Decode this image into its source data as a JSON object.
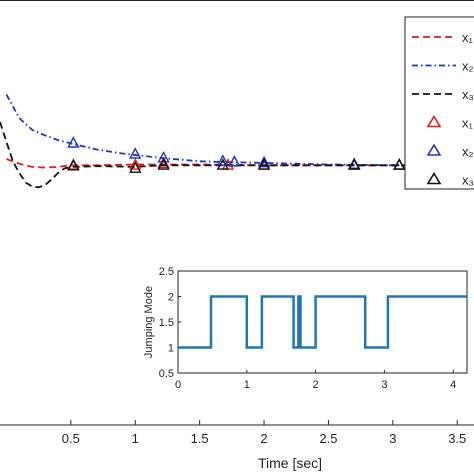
{
  "chart_data": [
    {
      "type": "line",
      "xlabel": "Time [sec]",
      "ylabel": "",
      "xlim": [
        -0.05,
        3.63
      ],
      "ylim": [
        -3.3,
        2.1
      ],
      "xticks": [
        0.5,
        1,
        1.5,
        2,
        2.5,
        3,
        3.5
      ],
      "xtick_labels": [
        "0.5",
        "1",
        "1.5",
        "2",
        "2.5",
        "3",
        "3.5"
      ],
      "series": [
        {
          "name": "x₁",
          "color": "#e41a1c",
          "style": "dashed",
          "x": [
            0,
            0.1,
            0.2,
            0.3,
            0.4,
            0.5,
            0.7,
            1.0,
            1.2,
            1.5,
            2.0,
            3.0,
            3.6
          ],
          "y": [
            0.08,
            0.02,
            -0.02,
            -0.03,
            -0.02,
            0.0,
            0.0,
            0.01,
            0.01,
            0.01,
            0.0,
            0.0,
            0.0
          ],
          "markers_x": [
            0.52,
            1.0,
            1.22,
            1.72,
            2.0,
            2.7,
            3.05
          ],
          "markers_y": [
            0.0,
            0.0,
            0.02,
            0.0,
            0.0,
            0.0,
            0.0
          ]
        },
        {
          "name": "x₂",
          "color": "#1f35c8",
          "style": "dash-dot",
          "x": [
            0,
            0.1,
            0.2,
            0.3,
            0.4,
            0.52,
            0.7,
            0.9,
            1.0,
            1.22,
            1.5,
            1.72,
            2.0,
            2.5,
            3.0,
            3.6
          ],
          "y": [
            0.9,
            0.6,
            0.45,
            0.38,
            0.32,
            0.27,
            0.2,
            0.15,
            0.13,
            0.09,
            0.05,
            0.04,
            0.03,
            0.01,
            0.0,
            0.0
          ],
          "markers_x": [
            0.52,
            1.0,
            1.22,
            1.68,
            1.77,
            2.0,
            2.7,
            3.05
          ],
          "markers_y": [
            0.28,
            0.14,
            0.09,
            0.05,
            0.04,
            0.03,
            0.01,
            0.0
          ]
        },
        {
          "name": "x₃",
          "color": "#111111",
          "style": "dashed",
          "x": [
            -0.05,
            0.0,
            0.05,
            0.1,
            0.15,
            0.2,
            0.25,
            0.3,
            0.35,
            0.4,
            0.45,
            0.52,
            0.7,
            1.0,
            1.2,
            1.5,
            2.0,
            3.0,
            3.6
          ],
          "y": [
            0.55,
            0.3,
            0.05,
            -0.1,
            -0.22,
            -0.27,
            -0.28,
            -0.25,
            -0.18,
            -0.1,
            -0.04,
            -0.02,
            -0.01,
            -0.02,
            0.0,
            0.0,
            0.0,
            0.0,
            0.0
          ],
          "markers_x": [
            0.52,
            1.0,
            1.22,
            1.68,
            2.0,
            2.7,
            3.05
          ],
          "markers_y": [
            -0.01,
            -0.04,
            0.0,
            0.0,
            0.0,
            0.0,
            0.0
          ]
        }
      ],
      "legend": {
        "placement": "top-right",
        "entries": [
          {
            "label": "x₁",
            "kind": "line",
            "color": "#e41a1c",
            "style": "dashed"
          },
          {
            "label": "x₂",
            "kind": "line",
            "color": "#1f35c8",
            "style": "dash-dot"
          },
          {
            "label": "x₃",
            "kind": "line",
            "color": "#111111",
            "style": "dashed"
          },
          {
            "label": "x₁",
            "kind": "marker",
            "color": "#e41a1c"
          },
          {
            "label": "x₂",
            "kind": "marker",
            "color": "#1f35c8"
          },
          {
            "label": "x₃",
            "kind": "marker",
            "color": "#111111"
          }
        ]
      }
    },
    {
      "type": "line",
      "subtype": "step",
      "xlabel": "",
      "ylabel": "Jumping Mode",
      "xlim": [
        0,
        4.2
      ],
      "ylim": [
        0.5,
        2.5
      ],
      "xticks": [
        0,
        1,
        2,
        3,
        4
      ],
      "yticks": [
        0.5,
        1,
        1.5,
        2,
        2.5
      ],
      "xtick_labels": [
        "0",
        "1",
        "2",
        "3",
        "4"
      ],
      "ytick_labels": [
        "0.5",
        "1",
        "1.5",
        "2",
        "2.5"
      ],
      "color": "#1f77b4",
      "series": [
        {
          "x": [
            0,
            0.48,
            0.48,
            1.0,
            1.0,
            1.22,
            1.22,
            1.68,
            1.68,
            1.75,
            1.75,
            1.78,
            1.78,
            2.0,
            2.0,
            2.72,
            2.72,
            3.05,
            3.05,
            4.2
          ],
          "y": [
            1,
            1,
            2,
            2,
            1,
            1,
            2,
            2,
            1,
            1,
            2,
            2,
            1,
            1,
            2,
            2,
            1,
            1,
            2,
            2
          ]
        }
      ]
    }
  ]
}
